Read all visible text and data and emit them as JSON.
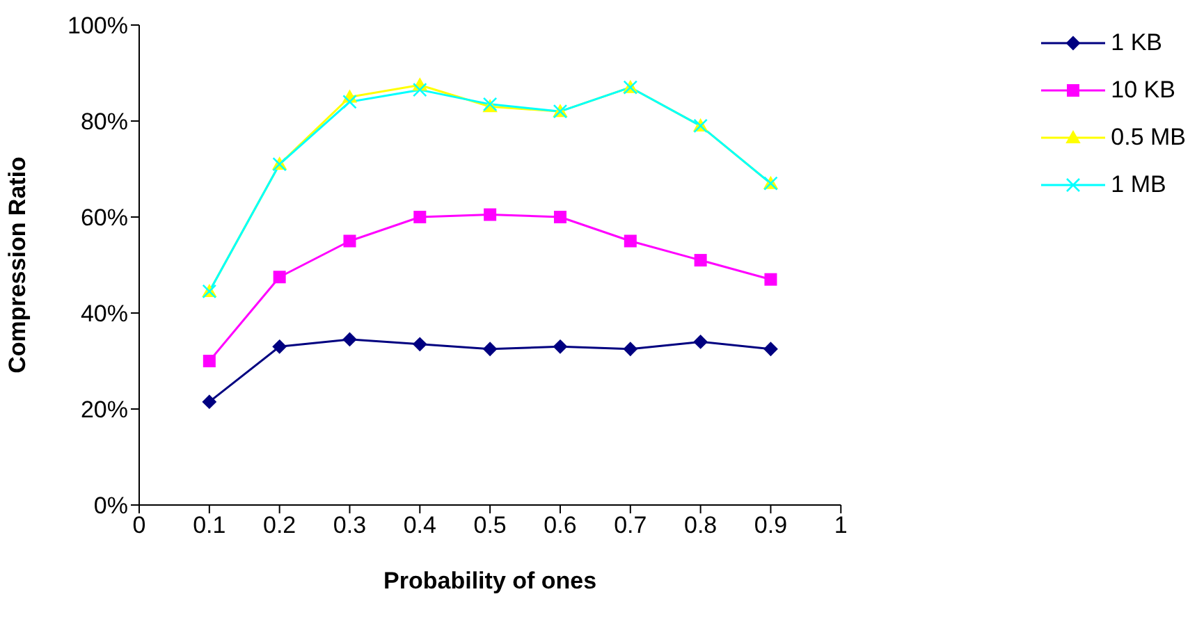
{
  "chart_data": {
    "type": "line",
    "xlabel": "Probability of ones",
    "ylabel": "Compression Ratio",
    "x": [
      0.1,
      0.2,
      0.3,
      0.4,
      0.5,
      0.6,
      0.7,
      0.8,
      0.9
    ],
    "series": [
      {
        "name": "1  KB",
        "color": "#000080",
        "marker": "diamond",
        "values": [
          21.5,
          33,
          34.5,
          33.5,
          32.5,
          33,
          32.5,
          34,
          32.5
        ]
      },
      {
        "name": "10 KB",
        "color": "#ff00ff",
        "marker": "square",
        "values": [
          30,
          47.5,
          55,
          60,
          60.5,
          60,
          55,
          51,
          47
        ]
      },
      {
        "name": "0.5 MB",
        "color": "#ffff00",
        "marker": "triangle",
        "values": [
          44.5,
          71,
          85,
          87.5,
          83,
          82,
          87,
          79,
          67
        ]
      },
      {
        "name": "1  MB",
        "color": "#00ffff",
        "marker": "cross",
        "values": [
          44.5,
          71,
          84,
          86.5,
          83.5,
          82,
          87,
          79,
          67
        ]
      }
    ],
    "xlim": [
      0,
      1
    ],
    "xticks": [
      0,
      0.1,
      0.2,
      0.3,
      0.4,
      0.5,
      0.6,
      0.7,
      0.8,
      0.9,
      1
    ],
    "ylim": [
      0,
      100
    ],
    "yticks": [
      {
        "value": 0,
        "label": "0%"
      },
      {
        "value": 20,
        "label": "20%"
      },
      {
        "value": 40,
        "label": "40%"
      },
      {
        "value": 60,
        "label": "60%"
      },
      {
        "value": 80,
        "label": "80%"
      },
      {
        "value": 100,
        "label": "100%"
      }
    ],
    "grid": false,
    "legend": "top right",
    "line_style": "solid"
  }
}
